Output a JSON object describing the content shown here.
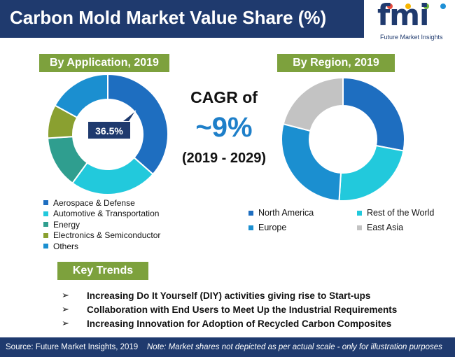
{
  "header": {
    "title": "Carbon Mold Market Value Share (%)"
  },
  "logo": {
    "text": "fmi",
    "subtitle": "Future Market Insights",
    "dot_colors": [
      "#e94b3c",
      "#f7b500",
      "#6cb33f",
      "#1e90d6"
    ]
  },
  "sections": {
    "application_title": "By Application, 2019",
    "region_title": "By Region, 2019"
  },
  "cagr": {
    "label": "CAGR of",
    "value": "~9%",
    "period": "(2019 - 2029)"
  },
  "colors": {
    "aerospace": "#1e6ec0",
    "automotive": "#22c9dc",
    "energy": "#2f9e8f",
    "electronics": "#8aa030",
    "others": "#1b8fd0",
    "north_america": "#1e6ec0",
    "rest_of_world": "#22c9dc",
    "europe": "#1b8fd0",
    "east_asia": "#c3c3c3",
    "accent": "#7da13d",
    "navy": "#1f3a6e"
  },
  "chart_data": [
    {
      "type": "pie",
      "title": "By Application, 2019",
      "categories": [
        "Aerospace & Defense",
        "Automotive & Transportation",
        "Energy",
        "Electronics & Semiconductor",
        "Others"
      ],
      "values": [
        36.5,
        23.5,
        14,
        9,
        17
      ],
      "annotations": [
        "36.5%"
      ]
    },
    {
      "type": "pie",
      "title": "By Region, 2019",
      "categories": [
        "North America",
        "Rest of the World",
        "Europe",
        "East Asia"
      ],
      "values": [
        28,
        23,
        28,
        21
      ]
    }
  ],
  "legend_app": [
    "Aerospace & Defense",
    "Automotive & Transportation",
    "Energy",
    "Electronics & Semiconductor",
    "Others"
  ],
  "legend_reg": [
    "North America",
    "Rest of the World",
    "Europe",
    "East Asia"
  ],
  "callout": {
    "text": "36.5%"
  },
  "trends": {
    "title": "Key Trends",
    "items": [
      "Increasing Do It Yourself (DIY) activities giving rise to Start-ups",
      "Collaboration with End Users to Meet Up the Industrial Requirements",
      "Increasing Innovation for Adoption of Recycled Carbon Composites"
    ],
    "bullet": "➢"
  },
  "footer": {
    "source": "Source: Future Market Insights, 2019",
    "note": "Note: Market shares not depicted as per actual scale - only for illustration purposes"
  }
}
